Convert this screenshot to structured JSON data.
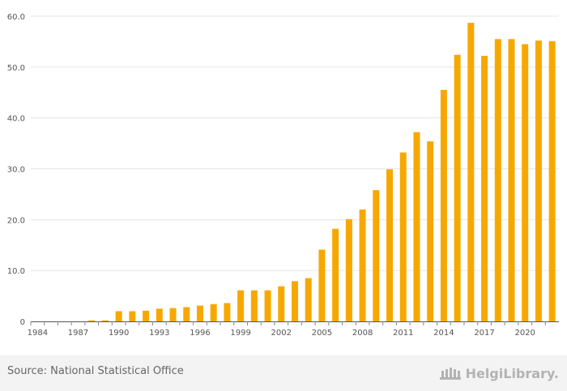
{
  "chart_data": {
    "type": "bar",
    "title": "",
    "xlabel": "",
    "ylabel": "",
    "ylim": [
      0,
      60
    ],
    "yticks": [
      "0",
      "10.0",
      "20.0",
      "30.0",
      "40.0",
      "50.0",
      "60.0"
    ],
    "grid": true,
    "bar_color": "#f7a800",
    "categories": [
      "1984",
      "1985",
      "1986",
      "1987",
      "1988",
      "1989",
      "1990",
      "1991",
      "1992",
      "1993",
      "1994",
      "1995",
      "1996",
      "1997",
      "1998",
      "1999",
      "2000",
      "2001",
      "2002",
      "2003",
      "2004",
      "2005",
      "2006",
      "2007",
      "2008",
      "2009",
      "2010",
      "2011",
      "2012",
      "2013",
      "2014",
      "2015",
      "2016",
      "2017",
      "2018",
      "2019",
      "2020",
      "2021",
      "2022"
    ],
    "xtick_labels": [
      "1984",
      "1987",
      "1990",
      "1993",
      "1996",
      "1999",
      "2002",
      "2005",
      "2008",
      "2011",
      "2014",
      "2017",
      "2020"
    ],
    "values": [
      0,
      0,
      0,
      0,
      0.2,
      0.2,
      2.0,
      2.0,
      2.1,
      2.5,
      2.6,
      2.8,
      3.1,
      3.4,
      3.6,
      6.1,
      6.1,
      6.1,
      6.9,
      7.9,
      8.5,
      14.1,
      18.2,
      20.1,
      22.0,
      25.8,
      29.9,
      33.2,
      37.2,
      35.4,
      45.5,
      52.4,
      58.7,
      52.2,
      55.5,
      55.5,
      54.5,
      55.2,
      55.1
    ]
  },
  "footer": {
    "source": "Source: National Statistical Office",
    "logo_text": "HelgiLibrary."
  }
}
